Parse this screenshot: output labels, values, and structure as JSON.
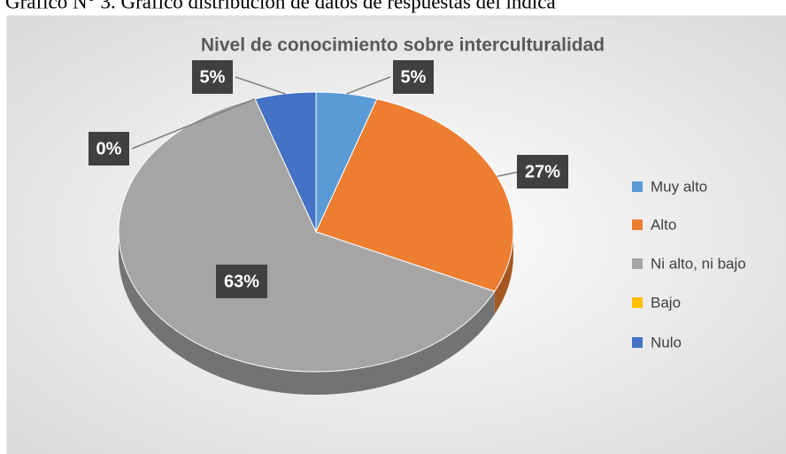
{
  "caption": "Gráfico N° 3. Gráfico distribución de datos de respuestas del indica",
  "chart_data": {
    "type": "pie3d",
    "title": "Nivel de conocimiento sobre interculturalidad",
    "categories": [
      "Muy alto",
      "Alto",
      "Ni alto, ni bajo",
      "Bajo",
      "Nulo"
    ],
    "values": [
      5,
      27,
      63,
      0,
      5
    ],
    "value_labels": [
      "5%",
      "27%",
      "63%",
      "0%",
      "5%"
    ],
    "colors": [
      "#5b9bd5",
      "#ed7d31",
      "#a5a5a5",
      "#ffc000",
      "#4472c4"
    ],
    "legend": "right"
  }
}
